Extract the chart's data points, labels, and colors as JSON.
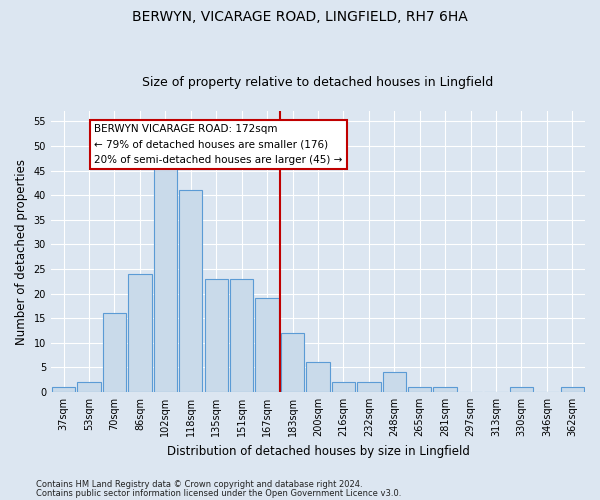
{
  "title1": "BERWYN, VICARAGE ROAD, LINGFIELD, RH7 6HA",
  "title2": "Size of property relative to detached houses in Lingfield",
  "xlabel": "Distribution of detached houses by size in Lingfield",
  "ylabel": "Number of detached properties",
  "bar_labels": [
    "37sqm",
    "53sqm",
    "70sqm",
    "86sqm",
    "102sqm",
    "118sqm",
    "135sqm",
    "151sqm",
    "167sqm",
    "183sqm",
    "200sqm",
    "216sqm",
    "232sqm",
    "248sqm",
    "265sqm",
    "281sqm",
    "297sqm",
    "313sqm",
    "330sqm",
    "346sqm",
    "362sqm"
  ],
  "bar_values": [
    1,
    2,
    16,
    24,
    46,
    41,
    23,
    23,
    19,
    12,
    6,
    2,
    2,
    4,
    1,
    1,
    0,
    0,
    1,
    0,
    1
  ],
  "bar_color": "#c9daea",
  "bar_edge_color": "#5b9bd5",
  "background_color": "#dce6f1",
  "plot_bg_color": "#dce6f1",
  "grid_color": "#ffffff",
  "vline_x_index": 8.5,
  "vline_color": "#c00000",
  "annotation_text": "BERWYN VICARAGE ROAD: 172sqm\n← 79% of detached houses are smaller (176)\n20% of semi-detached houses are larger (45) →",
  "annotation_box_color": "#ffffff",
  "annotation_box_edge": "#c00000",
  "ylim": [
    0,
    57
  ],
  "yticks": [
    0,
    5,
    10,
    15,
    20,
    25,
    30,
    35,
    40,
    45,
    50,
    55
  ],
  "footer1": "Contains HM Land Registry data © Crown copyright and database right 2024.",
  "footer2": "Contains public sector information licensed under the Open Government Licence v3.0.",
  "title_fontsize": 10,
  "subtitle_fontsize": 9,
  "tick_fontsize": 7,
  "ylabel_fontsize": 8.5,
  "xlabel_fontsize": 8.5,
  "footer_fontsize": 6,
  "annotation_fontsize": 7.5,
  "bar_width": 0.92
}
